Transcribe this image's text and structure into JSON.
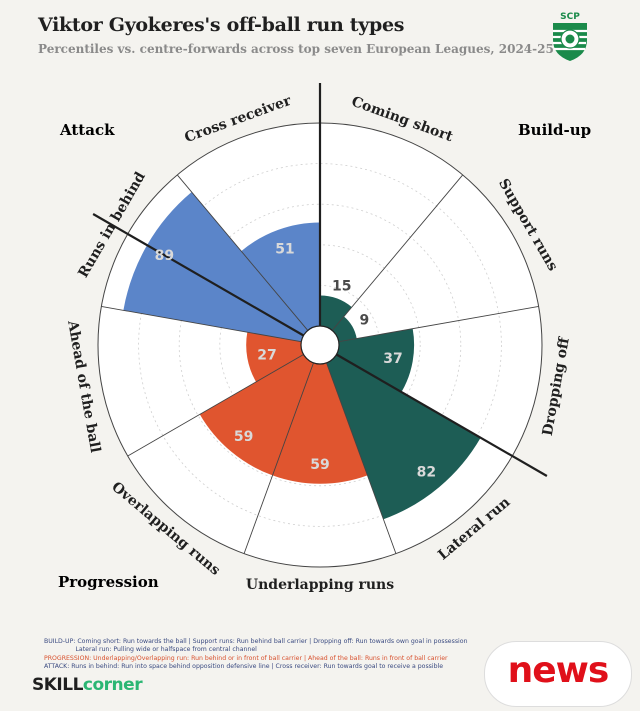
{
  "header": {
    "title": "Viktor Gyokeres's off-ball run types",
    "subtitle": "Percentiles vs. centre-forwards across top seven European Leagues, 2024-25"
  },
  "logo": {
    "text": "SCP",
    "icon": "sporting-cp-crest",
    "colors": {
      "green": "#1a8a4a",
      "white": "#ffffff"
    }
  },
  "groups": {
    "attack": {
      "label": "Attack",
      "color": "#5b85c9"
    },
    "buildup": {
      "label": "Build-up",
      "color": "#1d5d55"
    },
    "progression": {
      "label": "Progression",
      "color": "#e0552f"
    }
  },
  "chart_data": {
    "type": "polar-bar",
    "categories": [
      "Coming short",
      "Support runs",
      "Dropping off",
      "Lateral run",
      "Underlapping runs",
      "Overlapping runs",
      "Ahead of the ball",
      "Runs in behind",
      "Cross receiver"
    ],
    "values": [
      15,
      9,
      37,
      82,
      59,
      59,
      27,
      89,
      51
    ],
    "groups": [
      "Build-up",
      "Build-up",
      "Build-up",
      "Build-up",
      "Progression",
      "Progression",
      "Progression",
      "Attack",
      "Attack"
    ],
    "colors": [
      "#1d5d55",
      "#1d5d55",
      "#1d5d55",
      "#1d5d55",
      "#e0552f",
      "#e0552f",
      "#e0552f",
      "#5b85c9",
      "#5b85c9"
    ],
    "rlim": [
      0,
      100
    ]
  },
  "footer": {
    "line1": "BUILD-UP: Coming short: Run towards the ball | Support runs: Run behind ball carrier | Dropping off: Run towards own goal in possession",
    "line2": "                Lateral run: Pulling wide or halfspace from central channel",
    "line3": "PROGRESSION: Underlapping/Overlapping run: Run behind or in front of ball carrier | Ahead of the ball: Runs in front of ball carrier",
    "line4": "ATTACK: Runs in behind: Run into space behind opposition defensive line | Cross receiver: Run towards goal to receive a possible"
  },
  "brand": {
    "skill": "SKILL",
    "corner": "corner"
  },
  "watermark": {
    "text": "news"
  }
}
